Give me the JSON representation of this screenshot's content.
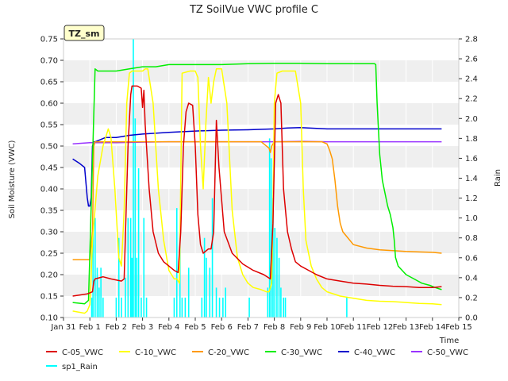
{
  "chart_data": {
    "type": "line",
    "title": "TZ SoilVue VWC profile C",
    "ylabel": "Soil Moisture (VWC)",
    "y2label": "Rain",
    "xlabel": "Time",
    "site_label": "TZ_sm",
    "ylim": [
      0.1,
      0.75
    ],
    "y2lim": [
      0.0,
      2.8
    ],
    "xlim": [
      0,
      15
    ],
    "x_ticks": [
      "Jan 31",
      "Feb 1",
      "Feb 2",
      "Feb 3",
      "Feb 4",
      "Feb 5",
      "Feb 6",
      "Feb 7",
      "Feb 8",
      "Feb 9",
      "Feb 10",
      "Feb 11",
      "Feb 12",
      "Feb 13",
      "Feb 14",
      "Feb 15"
    ],
    "y_ticks": [
      "0.10",
      "0.15",
      "0.20",
      "0.25",
      "0.30",
      "0.35",
      "0.40",
      "0.45",
      "0.50",
      "0.55",
      "0.60",
      "0.65",
      "0.70",
      "0.75"
    ],
    "y2_ticks": [
      "0.0",
      "0.2",
      "0.4",
      "0.6",
      "0.8",
      "1.0",
      "1.2",
      "1.4",
      "1.6",
      "1.8",
      "2.0",
      "2.2",
      "2.4",
      "2.6",
      "2.8"
    ],
    "grid": "horizontal bands",
    "legend_position": "bottom",
    "series": [
      {
        "name": "C-05_VWC",
        "color": "#dd0000",
        "axis": "left",
        "x": [
          0.35,
          0.9,
          1.1,
          1.15,
          1.2,
          1.5,
          1.8,
          2.2,
          2.3,
          2.45,
          2.55,
          2.6,
          2.8,
          2.95,
          3.0,
          3.05,
          3.1,
          3.25,
          3.4,
          3.6,
          3.8,
          4.0,
          4.2,
          4.35,
          4.45,
          4.55,
          4.65,
          4.75,
          4.9,
          5.0,
          5.1,
          5.2,
          5.3,
          5.5,
          5.6,
          5.7,
          5.8,
          5.9,
          6.1,
          6.4,
          6.8,
          7.2,
          7.6,
          7.85,
          7.95,
          8.05,
          8.15,
          8.25,
          8.35,
          8.5,
          8.65,
          8.8,
          9.0,
          9.3,
          9.6,
          10.0,
          10.5,
          11.0,
          11.5,
          12.0,
          12.5,
          13.0,
          13.5,
          14.0,
          14.35
        ],
        "y": [
          0.15,
          0.155,
          0.16,
          0.185,
          0.19,
          0.195,
          0.19,
          0.185,
          0.19,
          0.5,
          0.62,
          0.64,
          0.64,
          0.635,
          0.59,
          0.63,
          0.55,
          0.4,
          0.3,
          0.25,
          0.23,
          0.22,
          0.21,
          0.205,
          0.3,
          0.5,
          0.58,
          0.6,
          0.595,
          0.5,
          0.34,
          0.27,
          0.25,
          0.26,
          0.26,
          0.3,
          0.56,
          0.45,
          0.3,
          0.25,
          0.225,
          0.21,
          0.2,
          0.19,
          0.32,
          0.6,
          0.62,
          0.6,
          0.4,
          0.3,
          0.26,
          0.23,
          0.22,
          0.21,
          0.2,
          0.19,
          0.185,
          0.18,
          0.178,
          0.175,
          0.173,
          0.172,
          0.17,
          0.17,
          0.172
        ]
      },
      {
        "name": "C-10_VWC",
        "color": "#ffff00",
        "axis": "left",
        "x": [
          0.35,
          0.8,
          0.9,
          1.0,
          1.05,
          1.1,
          1.3,
          1.5,
          1.7,
          1.8,
          1.95,
          2.1,
          2.2,
          2.3,
          2.4,
          2.5,
          2.6,
          2.8,
          3.0,
          3.1,
          3.2,
          3.4,
          3.6,
          3.8,
          4.0,
          4.1,
          4.2,
          4.3,
          4.4,
          4.5,
          4.8,
          5.0,
          5.1,
          5.2,
          5.3,
          5.4,
          5.5,
          5.6,
          5.7,
          5.8,
          6.0,
          6.2,
          6.4,
          6.6,
          6.8,
          7.0,
          7.2,
          7.5,
          7.7,
          7.8,
          7.9,
          7.95,
          8.0,
          8.1,
          8.3,
          8.6,
          8.8,
          9.0,
          9.1,
          9.2,
          9.4,
          9.6,
          9.8,
          10.0,
          10.5,
          11.0,
          11.5,
          12.0,
          12.5,
          13.0,
          13.5,
          14.0,
          14.35
        ],
        "y": [
          0.115,
          0.11,
          0.115,
          0.13,
          0.2,
          0.28,
          0.43,
          0.5,
          0.54,
          0.52,
          0.4,
          0.24,
          0.22,
          0.35,
          0.6,
          0.67,
          0.675,
          0.675,
          0.675,
          0.68,
          0.68,
          0.6,
          0.4,
          0.28,
          0.21,
          0.2,
          0.19,
          0.19,
          0.18,
          0.67,
          0.675,
          0.675,
          0.66,
          0.5,
          0.4,
          0.55,
          0.66,
          0.6,
          0.65,
          0.68,
          0.68,
          0.6,
          0.35,
          0.24,
          0.2,
          0.18,
          0.17,
          0.165,
          0.16,
          0.16,
          0.18,
          0.35,
          0.6,
          0.67,
          0.675,
          0.675,
          0.675,
          0.6,
          0.4,
          0.28,
          0.22,
          0.19,
          0.17,
          0.16,
          0.15,
          0.145,
          0.14,
          0.138,
          0.137,
          0.135,
          0.133,
          0.132,
          0.13
        ]
      },
      {
        "name": "C-20_VWC",
        "color": "#ff9900",
        "axis": "left",
        "x": [
          0.35,
          0.8,
          1.0,
          1.1,
          1.15,
          1.2,
          2.0,
          3.0,
          4.0,
          5.0,
          6.0,
          7.0,
          7.5,
          7.8,
          7.85,
          7.9,
          8.0,
          8.3,
          9.0,
          9.5,
          9.8,
          10.0,
          10.1,
          10.2,
          10.3,
          10.4,
          10.5,
          10.6,
          10.8,
          11.0,
          11.5,
          12.0,
          12.5,
          13.0,
          13.5,
          14.0,
          14.35
        ],
        "y": [
          0.235,
          0.235,
          0.235,
          0.3,
          0.5,
          0.51,
          0.51,
          0.51,
          0.51,
          0.51,
          0.51,
          0.51,
          0.51,
          0.495,
          0.485,
          0.5,
          0.51,
          0.51,
          0.51,
          0.51,
          0.51,
          0.505,
          0.49,
          0.47,
          0.42,
          0.36,
          0.32,
          0.3,
          0.285,
          0.27,
          0.262,
          0.258,
          0.256,
          0.254,
          0.253,
          0.252,
          0.25
        ]
      },
      {
        "name": "C-30_VWC",
        "color": "#00ee00",
        "axis": "left",
        "x": [
          0.35,
          0.8,
          0.95,
          1.2,
          1.3,
          1.6,
          2.0,
          2.5,
          3.0,
          3.5,
          4.0,
          5.0,
          6.0,
          7.0,
          8.0,
          9.0,
          10.0,
          11.0,
          11.8,
          11.85,
          11.9,
          12.0,
          12.1,
          12.3,
          12.4,
          12.5,
          12.55,
          12.6,
          12.7,
          13.0,
          13.3,
          13.6,
          13.9,
          14.1,
          14.35
        ],
        "y": [
          0.135,
          0.132,
          0.14,
          0.68,
          0.675,
          0.675,
          0.675,
          0.68,
          0.685,
          0.685,
          0.69,
          0.69,
          0.69,
          0.692,
          0.693,
          0.693,
          0.692,
          0.692,
          0.692,
          0.69,
          0.6,
          0.48,
          0.42,
          0.36,
          0.34,
          0.31,
          0.28,
          0.24,
          0.22,
          0.2,
          0.19,
          0.18,
          0.175,
          0.17,
          0.165
        ]
      },
      {
        "name": "C-40_VWC",
        "color": "#0000cc",
        "axis": "left",
        "x": [
          0.35,
          0.6,
          0.8,
          0.9,
          0.95,
          1.0,
          1.05,
          1.1,
          1.15,
          1.2,
          1.4,
          1.6,
          2.0,
          2.5,
          3.0,
          4.0,
          5.0,
          6.0,
          7.0,
          8.0,
          8.5,
          9.0,
          10.0,
          11.0,
          12.0,
          13.0,
          14.0,
          14.35
        ],
        "y": [
          0.47,
          0.46,
          0.45,
          0.38,
          0.36,
          0.36,
          0.38,
          0.5,
          0.51,
          0.51,
          0.515,
          0.52,
          0.52,
          0.525,
          0.528,
          0.532,
          0.535,
          0.537,
          0.538,
          0.54,
          0.542,
          0.543,
          0.54,
          0.54,
          0.54,
          0.54,
          0.54,
          0.54
        ]
      },
      {
        "name": "C-50_VWC",
        "color": "#9933ff",
        "axis": "left",
        "x": [
          0.35,
          1.0,
          2.0,
          3.0,
          4.0,
          5.0,
          6.0,
          7.0,
          8.0,
          9.0,
          10.0,
          11.0,
          12.0,
          13.0,
          14.0,
          14.35
        ],
        "y": [
          0.505,
          0.508,
          0.508,
          0.509,
          0.51,
          0.51,
          0.51,
          0.51,
          0.51,
          0.511,
          0.51,
          0.51,
          0.51,
          0.51,
          0.51,
          0.51
        ]
      },
      {
        "name": "sp1_Rain",
        "color": "#00ffff",
        "axis": "right",
        "kind": "spikes",
        "x": [
          1.07,
          1.12,
          1.2,
          1.28,
          1.35,
          1.42,
          1.5,
          2.0,
          2.1,
          2.2,
          2.35,
          2.45,
          2.55,
          2.6,
          2.65,
          2.72,
          2.78,
          2.85,
          2.95,
          3.05,
          3.15,
          4.2,
          4.3,
          4.42,
          4.5,
          4.62,
          4.75,
          5.25,
          5.35,
          5.42,
          5.55,
          5.65,
          5.8,
          5.92,
          6.05,
          6.15,
          7.05,
          7.75,
          7.82,
          7.88,
          7.95,
          8.02,
          8.1,
          8.18,
          8.25,
          8.35,
          8.42,
          10.75
        ],
        "y": [
          0.2,
          0.9,
          1.0,
          0.5,
          0.3,
          0.5,
          0.2,
          0.2,
          0.8,
          0.2,
          0.4,
          1.0,
          1.0,
          0.6,
          2.8,
          2.0,
          0.6,
          1.5,
          0.2,
          1.0,
          0.2,
          0.2,
          1.1,
          0.8,
          0.2,
          0.2,
          0.5,
          0.2,
          0.8,
          0.6,
          0.5,
          1.2,
          0.3,
          0.2,
          0.2,
          0.3,
          0.2,
          0.3,
          1.8,
          1.6,
          1.2,
          0.9,
          0.8,
          0.6,
          0.3,
          0.2,
          0.2,
          0.2
        ]
      }
    ]
  }
}
